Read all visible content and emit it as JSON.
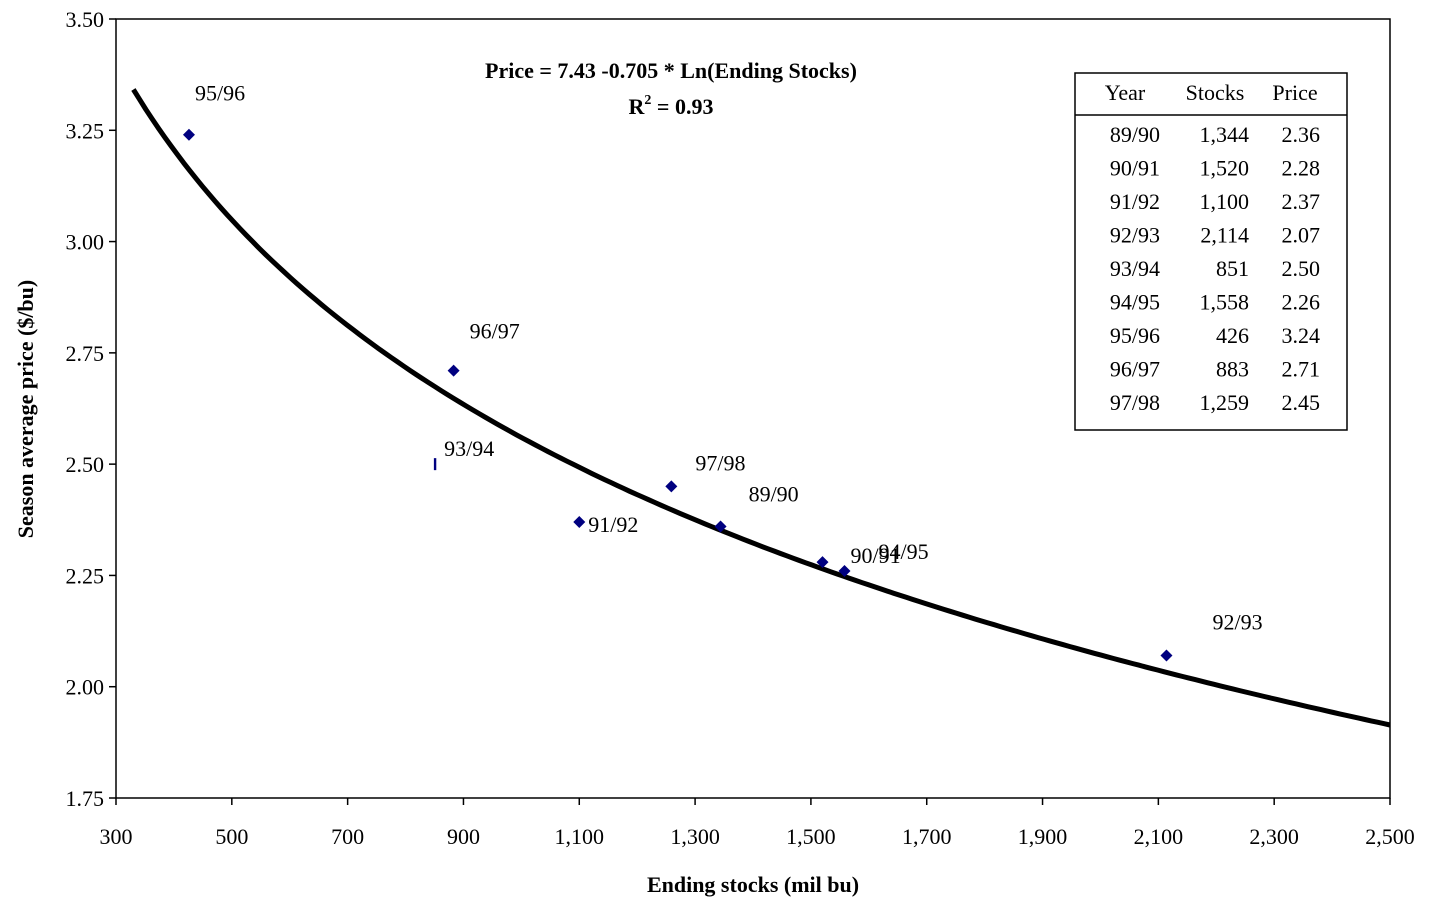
{
  "chart_data": {
    "type": "scatter",
    "xlabel": "Ending stocks (mil bu)",
    "ylabel": "Season average price ($/bu)",
    "xlim": [
      300,
      2500
    ],
    "ylim": [
      1.75,
      3.5
    ],
    "x_ticks": [
      "300",
      "500",
      "700",
      "900",
      "1,100",
      "1,300",
      "1,500",
      "1,700",
      "1,900",
      "2,100",
      "2,300",
      "2,500"
    ],
    "y_ticks": [
      "1.75",
      "2.00",
      "2.25",
      "2.50",
      "2.75",
      "3.00",
      "3.25",
      "3.50"
    ],
    "grid": false,
    "annotation": {
      "equation": "Price = 7.43 -0.705 * Ln(Ending Stocks)",
      "r2_prefix": "R",
      "r2_sup": "2",
      "r2_suffix": " = 0.93"
    },
    "trendline": {
      "type": "logarithmic",
      "intercept": 7.43,
      "coef": -0.705,
      "x_from": 330,
      "x_to": 2500
    },
    "points": [
      {
        "label": "89/90",
        "x": 1344,
        "y": 2.36
      },
      {
        "label": "90/91",
        "x": 1520,
        "y": 2.28
      },
      {
        "label": "91/92",
        "x": 1100,
        "y": 2.37
      },
      {
        "label": "92/93",
        "x": 2114,
        "y": 2.07
      },
      {
        "label": "93/94",
        "x": 851,
        "y": 2.5
      },
      {
        "label": "94/95",
        "x": 1558,
        "y": 2.26
      },
      {
        "label": "95/96",
        "x": 426,
        "y": 3.24
      },
      {
        "label": "96/97",
        "x": 883,
        "y": 2.71
      },
      {
        "label": "97/98",
        "x": 1259,
        "y": 2.45
      }
    ],
    "marker_color": "#000080",
    "table": {
      "headers": [
        "Year",
        "Stocks",
        "Price"
      ],
      "rows": [
        [
          "89/90",
          "1,344",
          "2.36"
        ],
        [
          "90/91",
          "1,520",
          "2.28"
        ],
        [
          "91/92",
          "1,100",
          "2.37"
        ],
        [
          "92/93",
          "2,114",
          "2.07"
        ],
        [
          "93/94",
          "851",
          "2.50"
        ],
        [
          "94/95",
          "1,558",
          "2.26"
        ],
        [
          "95/96",
          "426",
          "3.24"
        ],
        [
          "96/97",
          "883",
          "2.71"
        ],
        [
          "97/98",
          "1,259",
          "2.45"
        ]
      ],
      "placement": "top-right"
    }
  }
}
